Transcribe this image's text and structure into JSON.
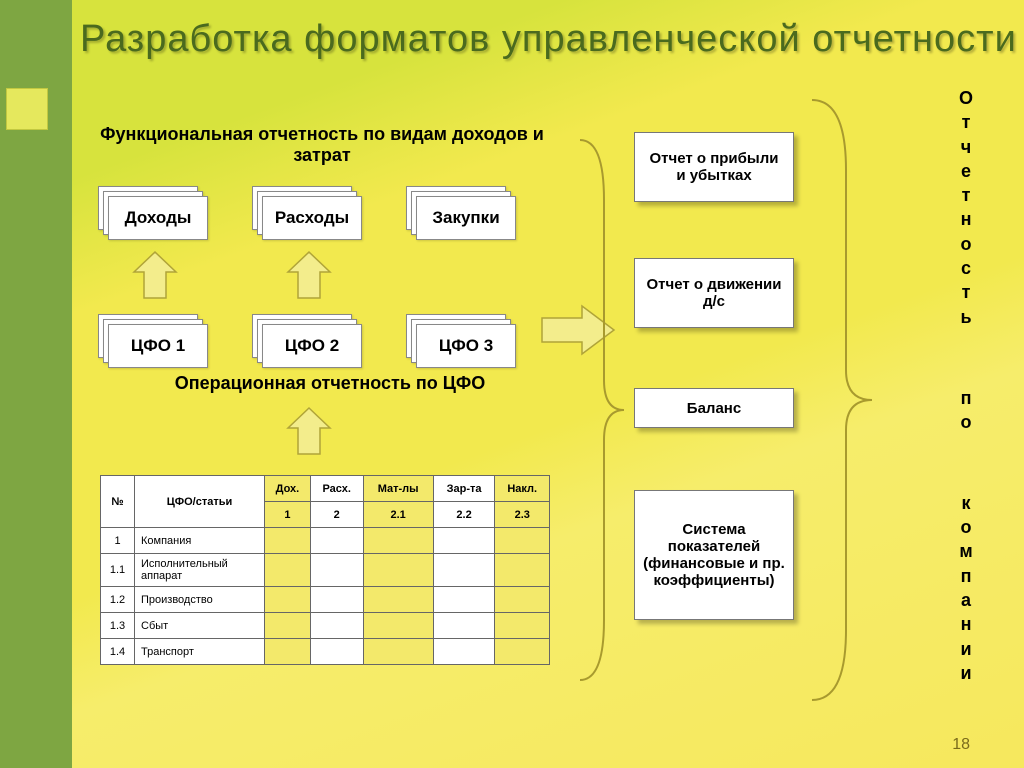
{
  "slide": {
    "title": "Разработка форматов управленческой отчетности",
    "number": "18",
    "bg_colors": {
      "grad_a": "#d7e33d",
      "grad_b": "#f2e94e",
      "grad_c": "#f6e85d"
    },
    "sidebar_color": "#7ea642",
    "accent_square_color": "#e5e85d"
  },
  "functional": {
    "heading": "Функциональная отчетность по видам доходов и затрат",
    "boxes": [
      "Доходы",
      "Расходы",
      "Закупки"
    ]
  },
  "operational": {
    "heading": "Операционная отчетность по ЦФО",
    "boxes": [
      "ЦФО 1",
      "ЦФО 2",
      "ЦФО 3"
    ]
  },
  "reports": {
    "items": [
      "Отчет о прибыли и убытках",
      "Отчет о движении д/с",
      "Баланс",
      "Система показателей (финансовые и пр. коэффициенты)"
    ]
  },
  "vertical_label": "Отчетность по компании",
  "table": {
    "headers": {
      "no": "№",
      "articles": "ЦФО/статьи",
      "cols_top": [
        "Дох.",
        "Расх.",
        "Мат-лы",
        "Зар-та",
        "Накл."
      ],
      "cols_bottom": [
        "1",
        "2",
        "2.1",
        "2.2",
        "2.3"
      ]
    },
    "rows": [
      {
        "no": "1",
        "name": "Компания"
      },
      {
        "no": "1.1",
        "name": "Исполнительный аппарат"
      },
      {
        "no": "1.2",
        "name": "Производство"
      },
      {
        "no": "1.3",
        "name": "Сбыт"
      },
      {
        "no": "1.4",
        "name": "Транспорт"
      }
    ]
  },
  "style": {
    "arrow_fill": "#f3ed8c",
    "arrow_stroke": "#b0a438",
    "box_border": "#777777",
    "table_yellow": "#f3e96b",
    "title_color": "#4a6a1e",
    "text_color": "#000000",
    "font_family": "Arial"
  }
}
